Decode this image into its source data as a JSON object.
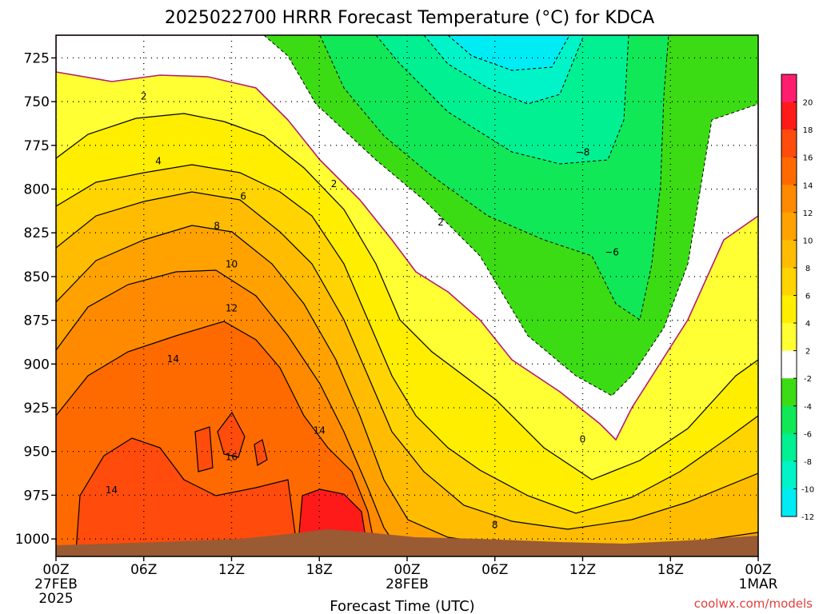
{
  "chart_data": {
    "type": "heatmap",
    "title": "2025022700 HRRR Forecast Temperature (°C) for KDCA",
    "xlabel": "Forecast Time (UTC)",
    "ylabel": "",
    "x_ticks": [
      {
        "hour": 0,
        "label": "00Z",
        "sub": [
          "27FEB",
          "2025"
        ]
      },
      {
        "hour": 6,
        "label": "06Z",
        "sub": []
      },
      {
        "hour": 12,
        "label": "12Z",
        "sub": []
      },
      {
        "hour": 18,
        "label": "18Z",
        "sub": []
      },
      {
        "hour": 24,
        "label": "00Z",
        "sub": [
          "28FEB"
        ]
      },
      {
        "hour": 30,
        "label": "06Z",
        "sub": []
      },
      {
        "hour": 36,
        "label": "12Z",
        "sub": []
      },
      {
        "hour": 42,
        "label": "18Z",
        "sub": []
      },
      {
        "hour": 48,
        "label": "00Z",
        "sub": [
          "1MAR"
        ]
      }
    ],
    "xlim": [
      0,
      48
    ],
    "y_ticks": [
      725,
      750,
      775,
      800,
      825,
      850,
      875,
      900,
      925,
      950,
      975,
      1000
    ],
    "ylim": [
      712,
      1010
    ],
    "y_inverted": true,
    "grid": true,
    "colorbar": {
      "placement": "right",
      "levels": [
        -12,
        -10,
        -8,
        -6,
        -4,
        -2,
        2,
        4,
        6,
        8,
        10,
        12,
        14,
        16,
        18,
        20
      ],
      "labels": [
        "20",
        "18",
        "16",
        "14",
        "12",
        "10",
        "8",
        "6",
        "4",
        "2",
        "-2",
        "-4",
        "-6",
        "-8",
        "-10",
        "-12"
      ],
      "colors_top_to_bottom": [
        "#ff1e6e",
        "#ff1a1a",
        "#ff4c0c",
        "#ff6a00",
        "#ff8a00",
        "#ffa200",
        "#ffbc00",
        "#ffd400",
        "#ffee00",
        "#ffff33",
        "#ffffff",
        "#3cdc14",
        "#10e858",
        "#00f092",
        "#00f4c8",
        "#00ecf4"
      ]
    },
    "contour_labels": [
      {
        "hour": 6.0,
        "p": 747,
        "text": "2"
      },
      {
        "hour": 7.0,
        "p": 784,
        "text": "4"
      },
      {
        "hour": 12.8,
        "p": 804,
        "text": "6"
      },
      {
        "hour": 11.0,
        "p": 821,
        "text": "8"
      },
      {
        "hour": 12.0,
        "p": 843,
        "text": "10"
      },
      {
        "hour": 12.0,
        "p": 868,
        "text": "12"
      },
      {
        "hour": 8.0,
        "p": 897,
        "text": "14"
      },
      {
        "hour": 18.0,
        "p": 938,
        "text": "14"
      },
      {
        "hour": 12.0,
        "p": 953,
        "text": "16"
      },
      {
        "hour": 3.8,
        "p": 972,
        "text": "14"
      },
      {
        "hour": 30.0,
        "p": 992,
        "text": "8"
      },
      {
        "hour": 19.0,
        "p": 797,
        "text": "2"
      },
      {
        "hour": 26.3,
        "p": 819,
        "text": "2"
      },
      {
        "hour": 36.0,
        "p": 943,
        "text": "0"
      },
      {
        "hour": 36.0,
        "p": 779,
        "text": "−8"
      },
      {
        "hour": 38.0,
        "p": 836,
        "text": "−6"
      }
    ]
  },
  "credit": "coolwx.com/models"
}
